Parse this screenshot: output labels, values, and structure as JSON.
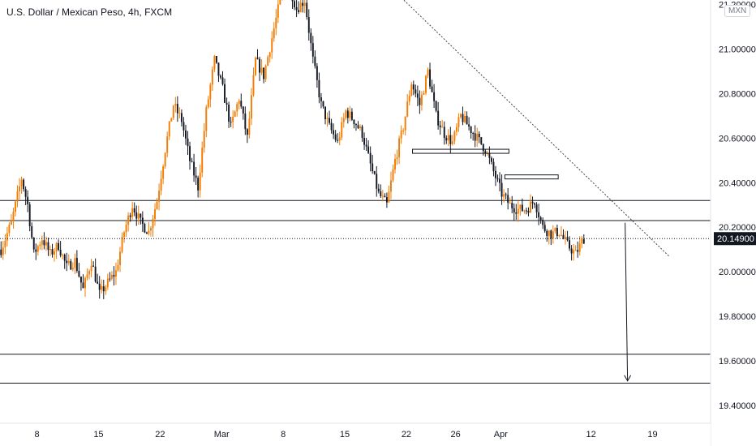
{
  "header": {
    "title": "U.S. Dollar / Mexican Peso, 4h, FXCM",
    "currency_badge": "MXN"
  },
  "chart_data": {
    "type": "candlestick",
    "symbol": "USDMXN",
    "timeframe": "4h",
    "source": "FXCM",
    "ylim": [
      19.32,
      21.22
    ],
    "y_ticks": [
      "19.40000",
      "19.60000",
      "19.80000",
      "20.00000",
      "20.20000",
      "20.40000",
      "20.60000",
      "20.80000",
      "21.00000",
      "21.20000"
    ],
    "x_ticks": [
      {
        "label": "8",
        "bar": 18
      },
      {
        "label": "15",
        "bar": 48
      },
      {
        "label": "22",
        "bar": 78
      },
      {
        "label": "Mar",
        "bar": 108
      },
      {
        "label": "8",
        "bar": 138
      },
      {
        "label": "15",
        "bar": 168
      },
      {
        "label": "22",
        "bar": 198
      },
      {
        "label": "26",
        "bar": 222
      },
      {
        "label": "Apr",
        "bar": 244
      },
      {
        "label": "12",
        "bar": 288
      },
      {
        "label": "19",
        "bar": 318
      }
    ],
    "bar_count": 290,
    "price_anchors": [
      [
        0,
        20.1
      ],
      [
        5,
        20.22
      ],
      [
        10,
        20.42
      ],
      [
        13,
        20.3
      ],
      [
        16,
        20.08
      ],
      [
        20,
        20.15
      ],
      [
        24,
        20.08
      ],
      [
        28,
        20.12
      ],
      [
        32,
        20.02
      ],
      [
        36,
        20.05
      ],
      [
        40,
        19.92
      ],
      [
        44,
        20.05
      ],
      [
        48,
        19.9
      ],
      [
        52,
        19.95
      ],
      [
        56,
        20.0
      ],
      [
        60,
        20.18
      ],
      [
        64,
        20.3
      ],
      [
        68,
        20.22
      ],
      [
        72,
        20.18
      ],
      [
        76,
        20.32
      ],
      [
        80,
        20.55
      ],
      [
        84,
        20.75
      ],
      [
        88,
        20.68
      ],
      [
        92,
        20.5
      ],
      [
        96,
        20.38
      ],
      [
        100,
        20.72
      ],
      [
        104,
        20.95
      ],
      [
        108,
        20.82
      ],
      [
        112,
        20.65
      ],
      [
        116,
        20.78
      ],
      [
        120,
        20.6
      ],
      [
        124,
        20.95
      ],
      [
        128,
        20.88
      ],
      [
        132,
        21.05
      ],
      [
        136,
        21.22
      ],
      [
        140,
        21.3
      ],
      [
        144,
        21.18
      ],
      [
        148,
        21.22
      ],
      [
        152,
        20.95
      ],
      [
        156,
        20.75
      ],
      [
        160,
        20.65
      ],
      [
        164,
        20.58
      ],
      [
        168,
        20.72
      ],
      [
        172,
        20.68
      ],
      [
        176,
        20.62
      ],
      [
        180,
        20.48
      ],
      [
        184,
        20.35
      ],
      [
        188,
        20.3
      ],
      [
        192,
        20.5
      ],
      [
        196,
        20.65
      ],
      [
        200,
        20.85
      ],
      [
        204,
        20.75
      ],
      [
        208,
        20.9
      ],
      [
        212,
        20.7
      ],
      [
        216,
        20.62
      ],
      [
        220,
        20.58
      ],
      [
        224,
        20.7
      ],
      [
        228,
        20.65
      ],
      [
        232,
        20.6
      ],
      [
        236,
        20.55
      ],
      [
        240,
        20.45
      ],
      [
        244,
        20.35
      ],
      [
        248,
        20.3
      ],
      [
        252,
        20.28
      ],
      [
        256,
        20.28
      ],
      [
        260,
        20.32
      ],
      [
        264,
        20.2
      ],
      [
        268,
        20.17
      ],
      [
        272,
        20.18
      ],
      [
        276,
        20.12
      ],
      [
        280,
        20.08
      ],
      [
        284,
        20.15
      ]
    ],
    "last_price": 20.149,
    "last_price_label": "20.14900",
    "horizontal_levels": [
      20.32,
      20.23,
      19.63,
      19.5
    ],
    "zones": [
      {
        "bar_start": 201,
        "bar_end": 248,
        "price_high": 20.55,
        "price_low": 20.535
      },
      {
        "bar_start": 246,
        "bar_end": 272,
        "price_high": 20.435,
        "price_low": 20.425
      }
    ],
    "trendline": {
      "bar_start": 190,
      "price_start": 21.28,
      "bar_end": 326,
      "price_end": 20.07
    },
    "arrow": {
      "bar": 305,
      "price_from": 20.22,
      "price_to": 19.51
    },
    "colors": {
      "up_candle": "#f57c00",
      "down_candle": "#131722",
      "level_line": "#131722",
      "trendline": "#444444",
      "last_price_bg": "#131722"
    }
  }
}
